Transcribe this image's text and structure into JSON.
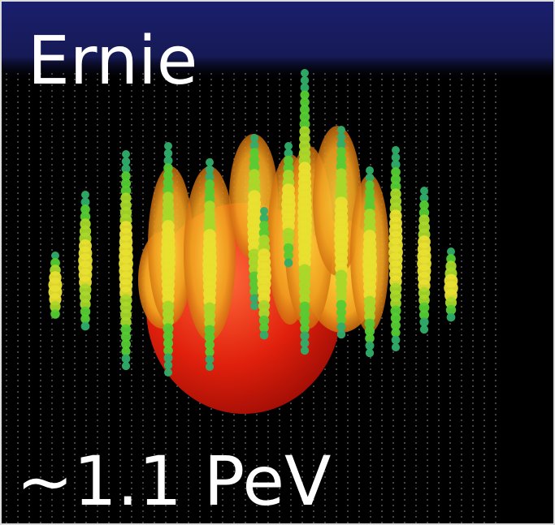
{
  "title": "Ernie",
  "energy_label": "~1.1 PeV"
}
